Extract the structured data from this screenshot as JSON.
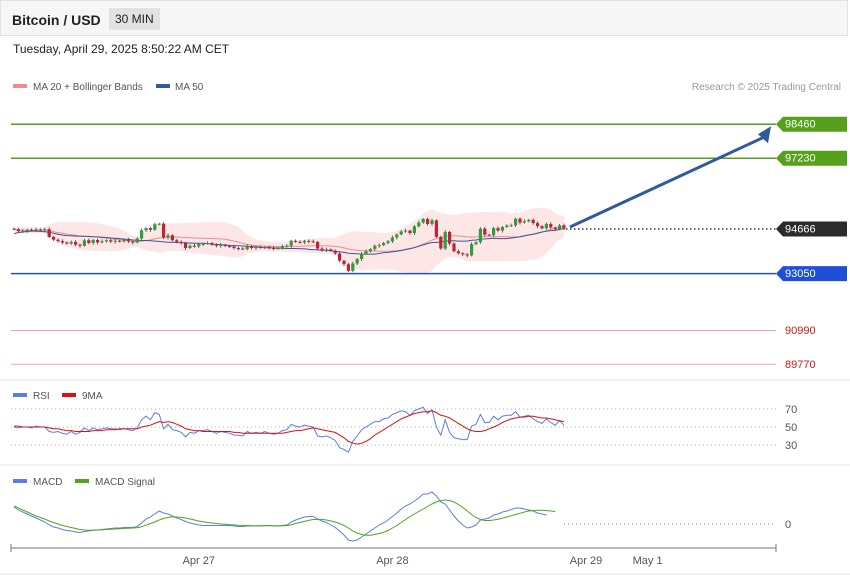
{
  "header": {
    "title": "Bitcoin / USD",
    "timeframe": "30 MIN",
    "datetime": "Tuesday, April 29, 2025 8:50:22 AM CET"
  },
  "legend": {
    "ma20": "MA 20 + Bollinger Bands",
    "ma50": "MA 50",
    "credit": "Research © 2025 Trading Central",
    "rsi": "RSI",
    "rsi_ma": "9MA",
    "macd": "MACD",
    "macd_signal": "MACD Signal"
  },
  "colors": {
    "up": "#2e9e3a",
    "down": "#c0223a",
    "resistance": "#55a11b",
    "support": "#1f4fd6",
    "extra": "#e84c4c",
    "bb": "#fbd5d5",
    "ma50": "#2f5a9c",
    "rsi": "#5b7fe0",
    "rsi_ma": "#e01010",
    "macd": "#5b7fe0",
    "macd_signal": "#55a11b",
    "arrow": "#2f5a9c"
  },
  "chart_data": {
    "type": "candlestick",
    "y_range": [
      89200,
      99700
    ],
    "current_price": 94666,
    "levels": [
      {
        "value": 98460,
        "label": "98460",
        "kind": "resistance"
      },
      {
        "value": 97230,
        "label": "97230",
        "kind": "resistance"
      },
      {
        "value": 94666,
        "label": "94666",
        "kind": "current"
      },
      {
        "value": 93050,
        "label": "93050",
        "kind": "support"
      },
      {
        "value": 90990,
        "label": "90990",
        "kind": "extra"
      },
      {
        "value": 89770,
        "label": "89770",
        "kind": "extra"
      }
    ],
    "x_ticks": [
      "Apr 27",
      "Apr 28",
      "Apr 29",
      "May 1"
    ],
    "x_tick_bars": [
      42,
      86,
      130,
      144
    ],
    "arrow_target": 98460,
    "closes": [
      94660,
      94590,
      94600,
      94640,
      94610,
      94650,
      94640,
      94660,
      94380,
      94280,
      94230,
      94180,
      94140,
      94200,
      94100,
      94060,
      94260,
      94160,
      94270,
      94180,
      94220,
      94260,
      94210,
      94240,
      94220,
      94280,
      94220,
      94180,
      94320,
      94620,
      94700,
      94640,
      94840,
      94860,
      94360,
      94440,
      94260,
      94200,
      94160,
      93980,
      94060,
      94040,
      94120,
      94130,
      94160,
      94100,
      94060,
      94090,
      94050,
      94030,
      93980,
      93960,
      93940,
      94050,
      93980,
      94010,
      93990,
      94020,
      93980,
      93960,
      93970,
      94050,
      94060,
      94240,
      94200,
      94180,
      94240,
      94220,
      94200,
      93960,
      93900,
      93930,
      93880,
      93780,
      93520,
      93390,
      93150,
      93420,
      93580,
      93780,
      93860,
      93940,
      94060,
      94080,
      94160,
      94220,
      94360,
      94470,
      94580,
      94610,
      94520,
      94760,
      94900,
      95030,
      94850,
      94980,
      94380,
      93960,
      94560,
      94140,
      93860,
      93790,
      93750,
      93710,
      94120,
      94190,
      94680,
      94460,
      94440,
      94700,
      94610,
      94740,
      94790,
      94800,
      95040,
      94900,
      94950,
      95000,
      94880,
      94770,
      94690,
      94850,
      94720,
      94660,
      94800,
      94680
    ],
    "ma50": [
      94500,
      94540,
      94560,
      94580,
      94590,
      94590,
      94580,
      94570,
      94550,
      94510,
      94480,
      94450,
      94430,
      94420,
      94410,
      94410,
      94400,
      94400,
      94390,
      94380,
      94370,
      94360,
      94340,
      94330,
      94320,
      94300,
      94290,
      94270,
      94260,
      94250,
      94250,
      94240,
      94230,
      94220,
      94200,
      94190,
      94190,
      94180,
      94170,
      94170,
      94160,
      94150,
      94150,
      94150,
      94140,
      94120,
      94110,
      94100,
      94090,
      94070,
      94060,
      94060,
      94050,
      94040,
      94030,
      94020,
      94010,
      93990,
      93990,
      93980,
      93980,
      93970,
      93960,
      93960,
      93960,
      93950,
      93950,
      93930,
      93920,
      93910,
      93900,
      93900,
      93880,
      93860,
      93840,
      93820,
      93790,
      93780,
      93770,
      93760,
      93760,
      93760,
      93760,
      93780,
      93810,
      93820,
      93840,
      93860,
      93890,
      93920,
      93950,
      93990,
      94040,
      94090,
      94140,
      94180,
      94180,
      94200,
      94230,
      94240,
      94240,
      94230,
      94230,
      94230,
      94260,
      94270,
      94300,
      94310,
      94320,
      94330,
      94320,
      94320,
      94320,
      94340,
      94360,
      94390,
      94420,
      94450,
      94480,
      94520,
      94560,
      94590,
      94610,
      94620,
      94650,
      94680
    ],
    "rsi": [
      50,
      49,
      50,
      50,
      49,
      51,
      50,
      50,
      45,
      44,
      45,
      43,
      42,
      45,
      42,
      44,
      49,
      46,
      49,
      47,
      48,
      49,
      48,
      48,
      47,
      48,
      47,
      46,
      49,
      58,
      62,
      58,
      66,
      64,
      48,
      53,
      47,
      46,
      44,
      39,
      44,
      43,
      46,
      46,
      47,
      45,
      43,
      45,
      44,
      43,
      41,
      41,
      40,
      45,
      43,
      44,
      43,
      45,
      43,
      42,
      43,
      46,
      47,
      53,
      51,
      50,
      52,
      51,
      50,
      40,
      39,
      40,
      38,
      35,
      27,
      25,
      22,
      34,
      40,
      47,
      50,
      53,
      56,
      56,
      59,
      60,
      64,
      66,
      68,
      67,
      63,
      68,
      70,
      72,
      65,
      69,
      50,
      41,
      58,
      44,
      38,
      37,
      36,
      36,
      51,
      53,
      64,
      55,
      55,
      62,
      58,
      62,
      63,
      63,
      67,
      61,
      62,
      63,
      59,
      56,
      54,
      59,
      55,
      52,
      57,
      52
    ],
    "rsi_ma": [
      51,
      51,
      50,
      50,
      50,
      50,
      50,
      50,
      49,
      48,
      48,
      47,
      46,
      46,
      45,
      45,
      45,
      45,
      46,
      46,
      46,
      47,
      47,
      47,
      48,
      48,
      48,
      48,
      48,
      50,
      51,
      52,
      54,
      56,
      55,
      56,
      55,
      53,
      51,
      48,
      47,
      46,
      46,
      45,
      45,
      45,
      45,
      45,
      45,
      45,
      44,
      44,
      43,
      43,
      43,
      43,
      43,
      43,
      43,
      43,
      43,
      43,
      44,
      45,
      46,
      46,
      47,
      48,
      49,
      48,
      47,
      46,
      45,
      44,
      41,
      38,
      34,
      32,
      31,
      32,
      34,
      37,
      41,
      44,
      47,
      50,
      53,
      56,
      59,
      61,
      63,
      65,
      66,
      67,
      67,
      68,
      66,
      63,
      62,
      60,
      57,
      54,
      51,
      48,
      46,
      45,
      45,
      46,
      48,
      50,
      52,
      55,
      57,
      59,
      60,
      61,
      61,
      62,
      62,
      61,
      60,
      60,
      59,
      58,
      57,
      56
    ],
    "rsi_levels": [
      70,
      50,
      30
    ],
    "macd": [
      170,
      140,
      120,
      100,
      80,
      60,
      40,
      20,
      -10,
      -30,
      -40,
      -55,
      -65,
      -70,
      -80,
      -85,
      -75,
      -70,
      -60,
      -60,
      -55,
      -50,
      -45,
      -40,
      -40,
      -35,
      -35,
      -35,
      -25,
      10,
      50,
      70,
      100,
      130,
      110,
      100,
      80,
      60,
      45,
      25,
      10,
      0,
      -10,
      -15,
      -15,
      -15,
      -15,
      -15,
      -15,
      -15,
      -20,
      -25,
      -25,
      -20,
      -20,
      -20,
      -20,
      -15,
      -15,
      -20,
      -20,
      -15,
      -10,
      20,
      40,
      55,
      70,
      75,
      75,
      50,
      30,
      15,
      -10,
      -35,
      -70,
      -110,
      -160,
      -170,
      -160,
      -130,
      -100,
      -70,
      -40,
      -10,
      10,
      40,
      75,
      110,
      150,
      180,
      200,
      230,
      260,
      300,
      300,
      320,
      280,
      220,
      200,
      140,
      80,
      30,
      -10,
      -40,
      -30,
      -10,
      40,
      50,
      60,
      90,
      100,
      120,
      130,
      145,
      160,
      160,
      150,
      140,
      130,
      110,
      100,
      90
    ],
    "macd_signal": [
      180,
      160,
      140,
      120,
      100,
      80,
      65,
      50,
      30,
      15,
      0,
      -15,
      -25,
      -35,
      -45,
      -55,
      -60,
      -62,
      -62,
      -60,
      -58,
      -55,
      -52,
      -50,
      -47,
      -44,
      -42,
      -40,
      -37,
      -28,
      -12,
      5,
      20,
      40,
      55,
      65,
      72,
      70,
      66,
      60,
      50,
      40,
      30,
      22,
      15,
      10,
      5,
      0,
      -3,
      -6,
      -9,
      -12,
      -14,
      -15,
      -17,
      -18,
      -18,
      -18,
      -17,
      -18,
      -18,
      -17,
      -16,
      -8,
      5,
      15,
      26,
      36,
      45,
      48,
      46,
      40,
      30,
      20,
      5,
      -15,
      -40,
      -70,
      -90,
      -105,
      -112,
      -112,
      -105,
      -95,
      -82,
      -65,
      -40,
      -15,
      15,
      45,
      75,
      100,
      125,
      150,
      175,
      200,
      220,
      235,
      240,
      235,
      220,
      195,
      165,
      130,
      95,
      65,
      45,
      35,
      35,
      40,
      48,
      58,
      70,
      82,
      95,
      107,
      120,
      130,
      135,
      138,
      138,
      135,
      130,
      125
    ],
    "macd_zero_label": "0"
  }
}
